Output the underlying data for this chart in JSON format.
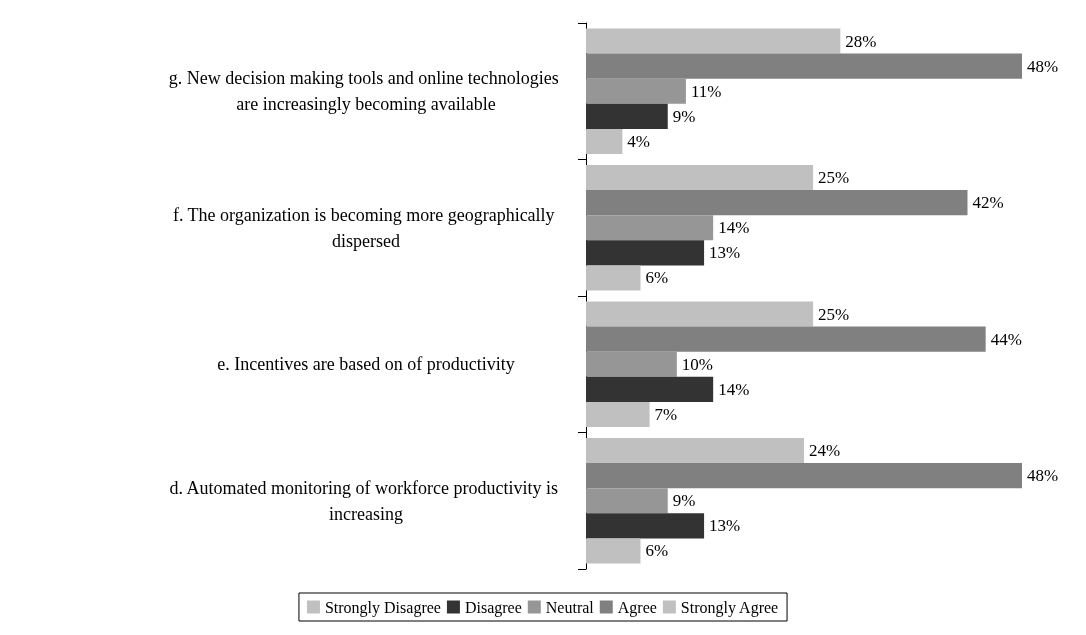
{
  "chart_data": {
    "type": "bar",
    "orientation": "horizontal",
    "legend": "bottom",
    "categories": [
      "g. New decision making tools and online technologies are increasingly becoming available",
      "f. The organization is becoming more geographically dispersed",
      "e. Incentives are based on of productivity",
      "d. Automated monitoring of workforce productivity is increasing"
    ],
    "series": [
      {
        "name": "Strongly Disagree",
        "color": "#c0c0c0",
        "values": [
          4,
          6,
          7,
          6
        ],
        "value_labels": [
          "4%",
          "6%",
          "7%",
          "6%"
        ]
      },
      {
        "name": "Disagree",
        "color": "#333333",
        "values": [
          9,
          13,
          14,
          13
        ],
        "value_labels": [
          "9%",
          "13%",
          "14%",
          "13%"
        ]
      },
      {
        "name": "Neutral",
        "color": "#969696",
        "values": [
          11,
          14,
          10,
          9
        ],
        "value_labels": [
          "11%",
          "14%",
          "10%",
          "9%"
        ]
      },
      {
        "name": "Agree",
        "color": "#808080",
        "values": [
          48,
          42,
          44,
          48
        ],
        "value_labels": [
          "48%",
          "42%",
          "44%",
          "48%"
        ]
      },
      {
        "name": "Strongly Agree",
        "color": "#c0c0c0",
        "values": [
          28,
          25,
          25,
          24
        ],
        "value_labels": [
          "28%",
          "25%",
          "25%",
          "24%"
        ]
      }
    ]
  }
}
